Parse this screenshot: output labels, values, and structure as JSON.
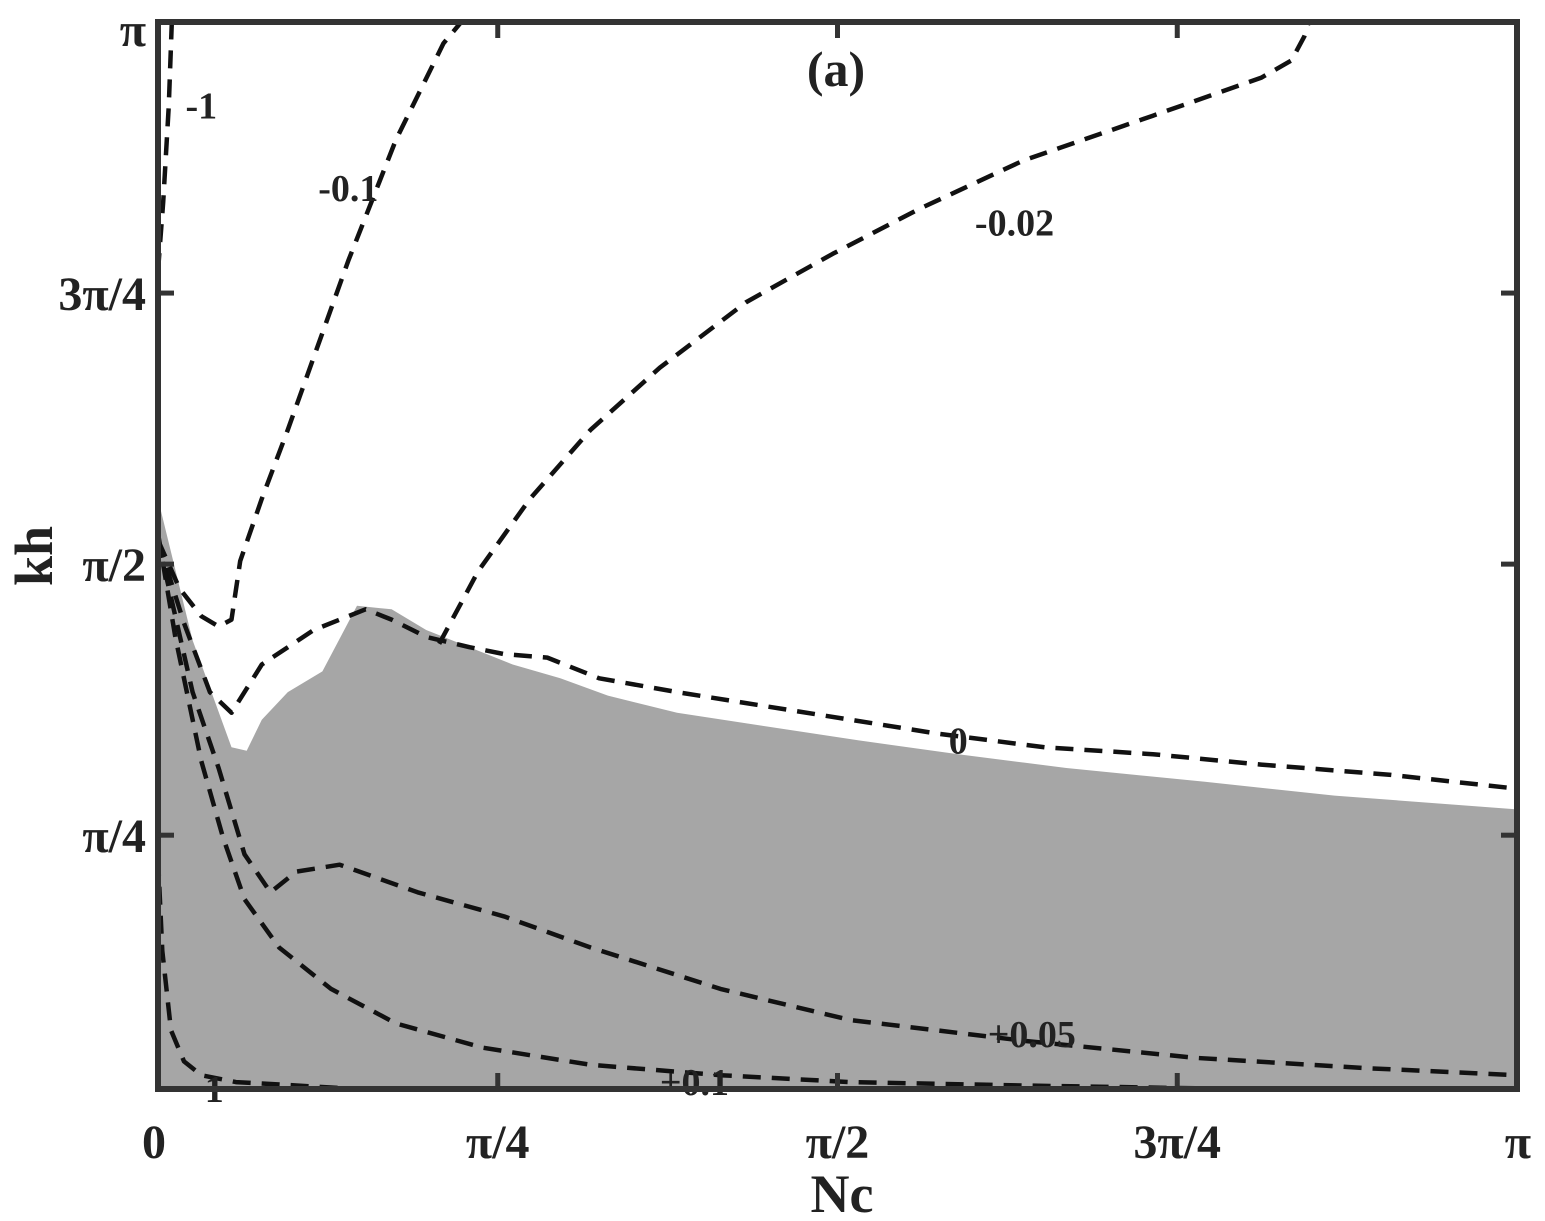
{
  "chart_data": {
    "type": "line",
    "panel_label": "(a)",
    "xlabel": "Nc",
    "ylabel": "kh",
    "xlim": [
      0,
      3.14159
    ],
    "ylim": [
      0.05,
      3.14159
    ],
    "x_ticks": [
      {
        "value": 0,
        "label": "0"
      },
      {
        "value": 0.7854,
        "label": "π/4"
      },
      {
        "value": 1.5708,
        "label": "π/2"
      },
      {
        "value": 2.3562,
        "label": "3π/4"
      },
      {
        "value": 3.14159,
        "label": "π"
      }
    ],
    "y_ticks": [
      {
        "value": 0.7854,
        "label": "π/4"
      },
      {
        "value": 1.5708,
        "label": "π/2"
      },
      {
        "value": 2.3562,
        "label": "3π/4"
      },
      {
        "value": 3.14159,
        "label": "π"
      }
    ],
    "grid": false,
    "colors": {
      "shaded_region": "#a6a6a6",
      "lines": "#111111",
      "frame": "#333333"
    },
    "shaded_region_boundary": [
      [
        0,
        1.76
      ],
      [
        0.08,
        1.35
      ],
      [
        0.17,
        1.04
      ],
      [
        0.205,
        1.03
      ],
      [
        0.24,
        1.12
      ],
      [
        0.3,
        1.2
      ],
      [
        0.38,
        1.26
      ],
      [
        0.46,
        1.45
      ],
      [
        0.54,
        1.44
      ],
      [
        0.62,
        1.38
      ],
      [
        0.72,
        1.33
      ],
      [
        0.82,
        1.28
      ],
      [
        0.93,
        1.24
      ],
      [
        1.04,
        1.19
      ],
      [
        1.2,
        1.14
      ],
      [
        1.41,
        1.1
      ],
      [
        1.62,
        1.06
      ],
      [
        1.85,
        1.02
      ],
      [
        2.1,
        0.98
      ],
      [
        2.42,
        0.94
      ],
      [
        2.72,
        0.9
      ],
      [
        3.14159,
        0.86
      ]
    ],
    "series": [
      {
        "name": "-1",
        "points": [
          [
            0,
            2.42
          ],
          [
            0.012,
            2.62
          ],
          [
            0.025,
            2.9
          ],
          [
            0.032,
            3.14
          ]
        ]
      },
      {
        "name": "-0.1",
        "points": [
          [
            0,
            1.64
          ],
          [
            0.05,
            1.5
          ],
          [
            0.1,
            1.42
          ],
          [
            0.14,
            1.39
          ],
          [
            0.17,
            1.41
          ],
          [
            0.19,
            1.58
          ],
          [
            0.24,
            1.76
          ],
          [
            0.3,
            1.96
          ],
          [
            0.36,
            2.17
          ],
          [
            0.44,
            2.45
          ],
          [
            0.55,
            2.8
          ],
          [
            0.66,
            3.08
          ],
          [
            0.7,
            3.14
          ]
        ]
      },
      {
        "name": "-0.02",
        "points": [
          [
            0.65,
            1.34
          ],
          [
            0.74,
            1.55
          ],
          [
            0.86,
            1.76
          ],
          [
            1.0,
            1.96
          ],
          [
            1.16,
            2.14
          ],
          [
            1.36,
            2.33
          ],
          [
            1.56,
            2.47
          ],
          [
            1.76,
            2.6
          ],
          [
            2.0,
            2.74
          ],
          [
            2.3,
            2.87
          ],
          [
            2.55,
            2.98
          ],
          [
            2.62,
            3.03
          ],
          [
            2.65,
            3.1
          ],
          [
            2.66,
            3.14
          ]
        ]
      },
      {
        "name": "0",
        "points": [
          [
            0,
            1.64
          ],
          [
            0.06,
            1.4
          ],
          [
            0.12,
            1.2
          ],
          [
            0.17,
            1.14
          ],
          [
            0.24,
            1.28
          ],
          [
            0.36,
            1.38
          ],
          [
            0.48,
            1.44
          ],
          [
            0.54,
            1.41
          ],
          [
            0.62,
            1.36
          ],
          [
            0.72,
            1.33
          ],
          [
            0.8,
            1.31
          ],
          [
            0.9,
            1.3
          ],
          [
            1.02,
            1.24
          ],
          [
            1.2,
            1.2
          ],
          [
            1.4,
            1.16
          ],
          [
            1.6,
            1.12
          ],
          [
            1.8,
            1.08
          ],
          [
            2.05,
            1.04
          ],
          [
            2.3,
            1.02
          ],
          [
            2.55,
            0.99
          ],
          [
            2.85,
            0.96
          ],
          [
            3.14159,
            0.92
          ]
        ]
      },
      {
        "name": "+0.05",
        "points": [
          [
            0,
            1.64
          ],
          [
            0.08,
            1.2
          ],
          [
            0.14,
            0.98
          ],
          [
            0.2,
            0.73
          ],
          [
            0.26,
            0.62
          ],
          [
            0.32,
            0.68
          ],
          [
            0.42,
            0.7
          ],
          [
            0.6,
            0.62
          ],
          [
            0.8,
            0.55
          ],
          [
            1.0,
            0.46
          ],
          [
            1.3,
            0.34
          ],
          [
            1.6,
            0.25
          ],
          [
            2.0,
            0.19
          ],
          [
            2.4,
            0.14
          ],
          [
            2.8,
            0.11
          ],
          [
            3.14159,
            0.09
          ]
        ]
      },
      {
        "name": "+0.1",
        "points": [
          [
            0,
            1.66
          ],
          [
            0.04,
            1.36
          ],
          [
            0.1,
            1.0
          ],
          [
            0.15,
            0.78
          ],
          [
            0.2,
            0.6
          ],
          [
            0.28,
            0.46
          ],
          [
            0.4,
            0.34
          ],
          [
            0.55,
            0.24
          ],
          [
            0.75,
            0.17
          ],
          [
            1.0,
            0.12
          ],
          [
            1.3,
            0.09
          ],
          [
            1.6,
            0.07
          ],
          [
            2.0,
            0.06
          ],
          [
            2.5,
            0.05
          ],
          [
            3.14159,
            0.05
          ]
        ]
      },
      {
        "name": "1",
        "points": [
          [
            0,
            0.72
          ],
          [
            0.01,
            0.45
          ],
          [
            0.03,
            0.22
          ],
          [
            0.06,
            0.13
          ],
          [
            0.1,
            0.09
          ],
          [
            0.18,
            0.07
          ],
          [
            0.32,
            0.06
          ],
          [
            0.46,
            0.05
          ]
        ]
      }
    ],
    "contour_labels": [
      {
        "text": "-1",
        "x": 0.1,
        "y": 2.9
      },
      {
        "text": "-0.1",
        "x": 0.44,
        "y": 2.66
      },
      {
        "text": "-0.02",
        "x": 1.98,
        "y": 2.56
      },
      {
        "text": "0",
        "x": 1.85,
        "y": 1.06
      },
      {
        "text": "+0.05",
        "x": 2.02,
        "y": 0.21
      },
      {
        "text": "+0.1",
        "x": 1.24,
        "y": 0.07
      },
      {
        "text": "1",
        "x": 0.13,
        "y": 0.05
      }
    ]
  }
}
